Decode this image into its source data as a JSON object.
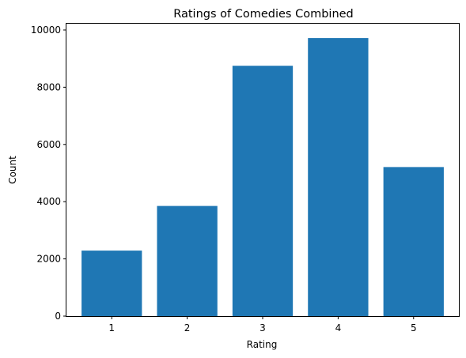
{
  "chart_data": {
    "type": "bar",
    "title": "Ratings of Comedies Combined",
    "xlabel": "Rating",
    "ylabel": "Count",
    "categories": [
      "1",
      "2",
      "3",
      "4",
      "5"
    ],
    "values": [
      2290,
      3850,
      8750,
      9720,
      5210
    ],
    "ylim": [
      0,
      10220
    ],
    "yticks": [
      0,
      2000,
      4000,
      6000,
      8000,
      10000
    ],
    "bar_color": "#1f77b4",
    "grid": false,
    "legend": "none"
  }
}
